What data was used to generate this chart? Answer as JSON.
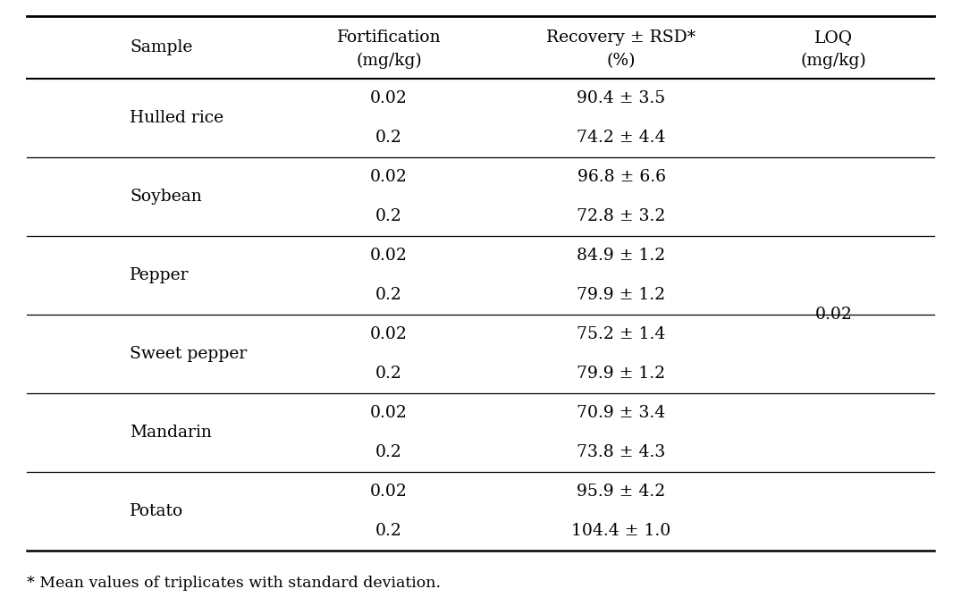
{
  "col_headers_line1": [
    "Sample",
    "Fortification",
    "Recovery ± RSD*",
    "LOQ"
  ],
  "col_headers_line2": [
    "",
    "(mg/kg)",
    "(%)",
    "(mg/kg)"
  ],
  "rows": [
    {
      "sample": "Hulled rice",
      "fortification": "0.02",
      "recovery": "90.4 ± 3.5"
    },
    {
      "sample": "",
      "fortification": "0.2",
      "recovery": "74.2 ± 4.4"
    },
    {
      "sample": "Soybean",
      "fortification": "0.02",
      "recovery": "96.8 ± 6.6"
    },
    {
      "sample": "",
      "fortification": "0.2",
      "recovery": "72.8 ± 3.2"
    },
    {
      "sample": "Pepper",
      "fortification": "0.02",
      "recovery": "84.9 ± 1.2"
    },
    {
      "sample": "",
      "fortification": "0.2",
      "recovery": "79.9 ± 1.2"
    },
    {
      "sample": "Sweet pepper",
      "fortification": "0.02",
      "recovery": "75.2 ± 1.4"
    },
    {
      "sample": "",
      "fortification": "0.2",
      "recovery": "79.9 ± 1.2"
    },
    {
      "sample": "Mandarin",
      "fortification": "0.02",
      "recovery": "70.9 ± 3.4"
    },
    {
      "sample": "",
      "fortification": "0.2",
      "recovery": "73.8 ± 4.3"
    },
    {
      "sample": "Potato",
      "fortification": "0.02",
      "recovery": "95.9 ± 4.2"
    },
    {
      "sample": "",
      "fortification": "0.2",
      "recovery": "104.4 ± 1.0"
    }
  ],
  "loq_value": "0.02",
  "footnote": "* Mean values of triplicates with standard deviation.",
  "bg_color": "#ffffff",
  "text_color": "#000000",
  "font_size": 13.5,
  "header_font_size": 13.5,
  "footnote_font_size": 12.5,
  "group_divider_after_rows": [
    1,
    3,
    5,
    7,
    9
  ]
}
